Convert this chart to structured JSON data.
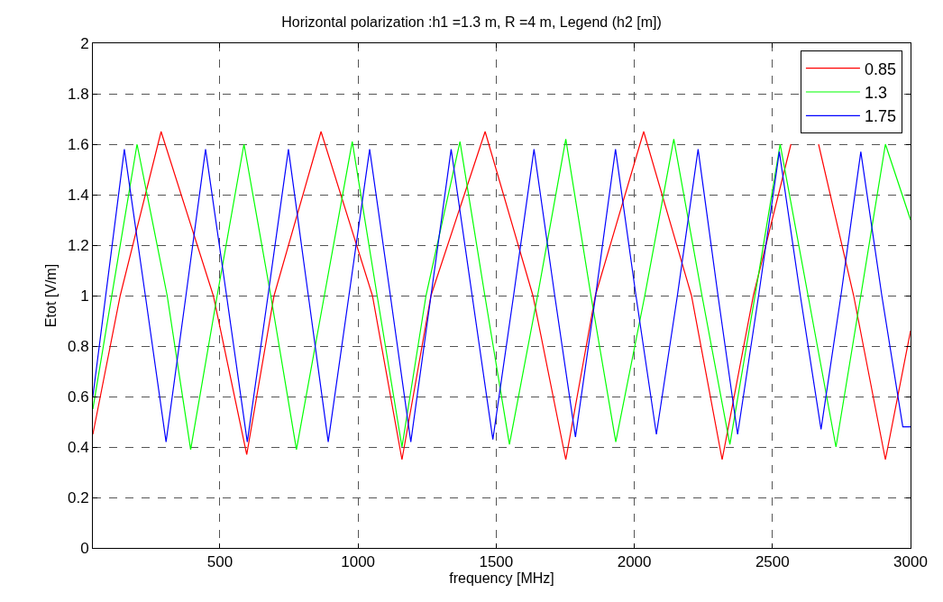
{
  "chart_data": {
    "type": "line",
    "title": "Horizontal polarization :h1 =1.3 m, R =4 m, Legend (h2 [m])",
    "xlabel": "frequency [MHz]",
    "ylabel": "Etot [V/m]",
    "xlim": [
      40,
      3000
    ],
    "xticks": [
      500,
      1000,
      1500,
      2000,
      2500,
      3000
    ],
    "ylim": [
      0,
      2
    ],
    "yticks": [
      0,
      0.2,
      0.4,
      0.6,
      0.8,
      1,
      1.2,
      1.4,
      1.6,
      1.8,
      2
    ],
    "grid": true,
    "legend": "top right",
    "line_style": "solid",
    "series": [
      {
        "name": "0.85",
        "color": "#ff0000",
        "x": [
          40,
          139,
          287,
          476,
          597,
          696,
          866,
          1052,
          1159,
          1264,
          1460,
          1633,
          1752,
          1859,
          2034,
          2207,
          2318,
          2431,
          2567,
          2618,
          2667,
          2794,
          2909,
          3000
        ],
        "values": [
          0.45,
          1.0,
          1.65,
          1.0,
          0.37,
          1.0,
          1.65,
          1.0,
          0.35,
          1.0,
          1.65,
          1.0,
          0.35,
          1.0,
          1.65,
          1.0,
          0.35,
          1.0,
          1.6,
          null,
          1.6,
          1.0,
          0.35,
          0.86
        ]
      },
      {
        "name": "1.3",
        "color": "#00ff00",
        "x": [
          40,
          200,
          309,
          394,
          490,
          587,
          684,
          777,
          878,
          979,
          1069,
          1159,
          1246,
          1369,
          1459,
          1548,
          1650,
          1752,
          1843,
          1933,
          2038,
          2143,
          2245,
          2346,
          2437,
          2528,
          2629,
          2730,
          2820,
          2909,
          3000
        ],
        "values": [
          0.55,
          1.6,
          1.0,
          0.39,
          1.0,
          1.6,
          1.0,
          0.39,
          1.0,
          1.61,
          1.0,
          0.4,
          1.0,
          1.61,
          1.0,
          0.41,
          1.0,
          1.62,
          1.0,
          0.42,
          1.0,
          1.62,
          1.0,
          0.41,
          1.0,
          1.6,
          1.0,
          0.4,
          1.0,
          1.6,
          1.3
        ]
      },
      {
        "name": "1.75",
        "color": "#0000ff",
        "x": [
          40,
          154,
          230,
          305,
          377,
          448,
          524,
          599,
          674,
          748,
          820,
          892,
          967,
          1042,
          1117,
          1191,
          1264,
          1337,
          1413,
          1488,
          1563,
          1637,
          1712,
          1787,
          1860,
          1932,
          2006,
          2080,
          2156,
          2231,
          2303,
          2374,
          2450,
          2525,
          2601,
          2676,
          2748,
          2820,
          2896,
          2972,
          3000
        ],
        "values": [
          0.6,
          1.58,
          1.0,
          0.42,
          1.0,
          1.58,
          1.0,
          0.42,
          1.0,
          1.58,
          1.0,
          0.42,
          1.0,
          1.58,
          1.0,
          0.42,
          1.0,
          1.58,
          1.0,
          0.43,
          1.0,
          1.58,
          1.0,
          0.44,
          1.0,
          1.58,
          1.0,
          0.45,
          1.0,
          1.58,
          1.0,
          0.45,
          1.0,
          1.57,
          1.0,
          0.47,
          1.0,
          1.57,
          1.0,
          0.48,
          0.48
        ]
      }
    ]
  }
}
